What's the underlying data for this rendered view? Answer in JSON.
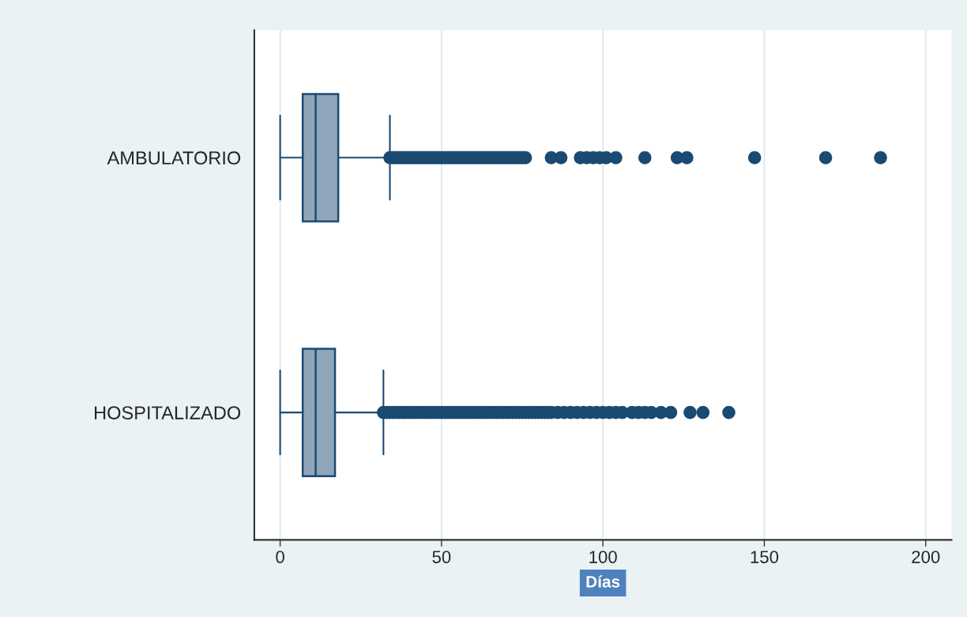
{
  "chart_data": {
    "type": "box",
    "orientation": "horizontal",
    "xlabel": "Días",
    "categories": [
      "AMBULATORIO",
      "HOSPITALIZADO"
    ],
    "boxes": [
      {
        "low": 0,
        "q1": 7,
        "median": 11,
        "q3": 18,
        "high": 34,
        "outliers": [
          34,
          35,
          36,
          37,
          38,
          39,
          40,
          41,
          42,
          43,
          44,
          45,
          46,
          47,
          48,
          49,
          50,
          51,
          52,
          53,
          54,
          55,
          56,
          57,
          58,
          59,
          60,
          61,
          62,
          63,
          64,
          65,
          66,
          67,
          68,
          69,
          70,
          71,
          72,
          73,
          74,
          75,
          76,
          84,
          87,
          93,
          95,
          97,
          99,
          101,
          104,
          113,
          123,
          126,
          147,
          169,
          186
        ]
      },
      {
        "low": 0,
        "q1": 7,
        "median": 11,
        "q3": 17,
        "high": 32,
        "outliers": [
          32,
          33,
          34,
          35,
          36,
          37,
          38,
          39,
          40,
          41,
          42,
          43,
          44,
          45,
          46,
          47,
          48,
          49,
          50,
          51,
          52,
          53,
          54,
          55,
          56,
          57,
          58,
          59,
          60,
          61,
          62,
          63,
          64,
          65,
          66,
          67,
          68,
          69,
          70,
          71,
          72,
          73,
          74,
          75,
          76,
          77,
          78,
          79,
          80,
          81,
          82,
          83,
          84,
          86,
          88,
          90,
          92,
          94,
          96,
          98,
          100,
          102,
          104,
          106,
          109,
          111,
          113,
          115,
          118,
          121,
          127,
          131,
          139
        ]
      }
    ],
    "color": "#8fa5ba",
    "xlim": [
      -8,
      208
    ],
    "xticks": [
      0,
      50,
      100,
      150,
      200
    ],
    "grid": "x",
    "legend": false
  }
}
